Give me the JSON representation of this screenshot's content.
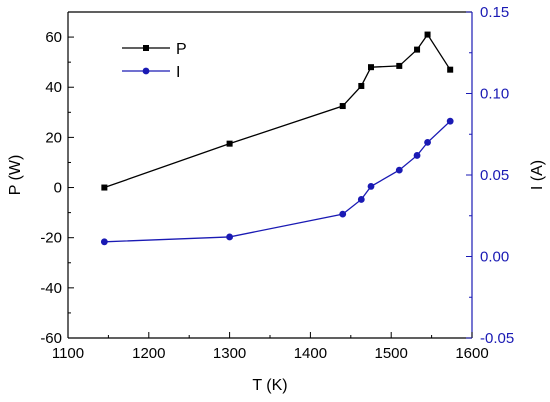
{
  "chart_data": {
    "type": "line",
    "x_axis": {
      "label": "T (K)",
      "lim": [
        1100,
        1600
      ],
      "ticks": [
        "1100",
        "1200",
        "1300",
        "1400",
        "1500",
        "1600"
      ]
    },
    "y_left": {
      "label": "P (W)",
      "lim": [
        -60,
        70
      ],
      "ticks": [
        "-60",
        "-40",
        "-20",
        "0",
        "20",
        "40",
        "60"
      ],
      "color": "#000000"
    },
    "y_right": {
      "label": "I (A)",
      "lim": [
        -0.05,
        0.15
      ],
      "ticks": [
        "-0.05",
        "0.00",
        "0.05",
        "0.10",
        "0.15"
      ],
      "color": "#1a1ab4"
    },
    "legend_position": "top-left",
    "grid": false,
    "series": [
      {
        "name": "P",
        "axis": "left",
        "marker": "square",
        "color": "#000000",
        "x": [
          1145,
          1300,
          1440,
          1463,
          1475,
          1510,
          1532,
          1545,
          1573
        ],
        "y": [
          0,
          17.5,
          32.5,
          40.5,
          48,
          48.5,
          55,
          61,
          47
        ]
      },
      {
        "name": "I",
        "axis": "right",
        "marker": "circle",
        "color": "#1a1ab4",
        "x": [
          1145,
          1300,
          1440,
          1463,
          1475,
          1510,
          1532,
          1545,
          1573
        ],
        "y": [
          0.009,
          0.012,
          0.026,
          0.035,
          0.043,
          0.053,
          0.062,
          0.07,
          0.083
        ]
      }
    ]
  }
}
